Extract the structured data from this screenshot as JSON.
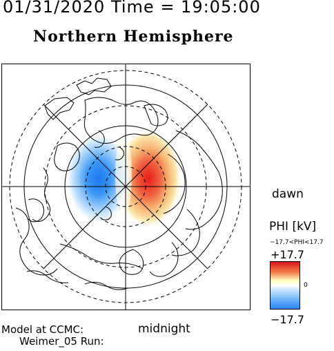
{
  "header": {
    "timestamp": "01/31/2020 Time = 19:05:00",
    "hemisphere_title": "Northern Hemisphere"
  },
  "map": {
    "orientation": {
      "dawn": "dawn",
      "midnight": "midnight"
    }
  },
  "colorbar": {
    "quantity_label": "PHI [kV]",
    "range_text": "−17.7<PHI<17.7",
    "max_label": "+17.7",
    "min_label": "−17.7",
    "zero_label": "0",
    "colors": {
      "positive": "#d7191c",
      "mid": "#ffffbf",
      "negative": "#2b83ff",
      "zero_white": "#ffffff"
    }
  },
  "footer": {
    "line1": "Model at CCMC:",
    "line2": "Weimer_05 Run:"
  }
}
